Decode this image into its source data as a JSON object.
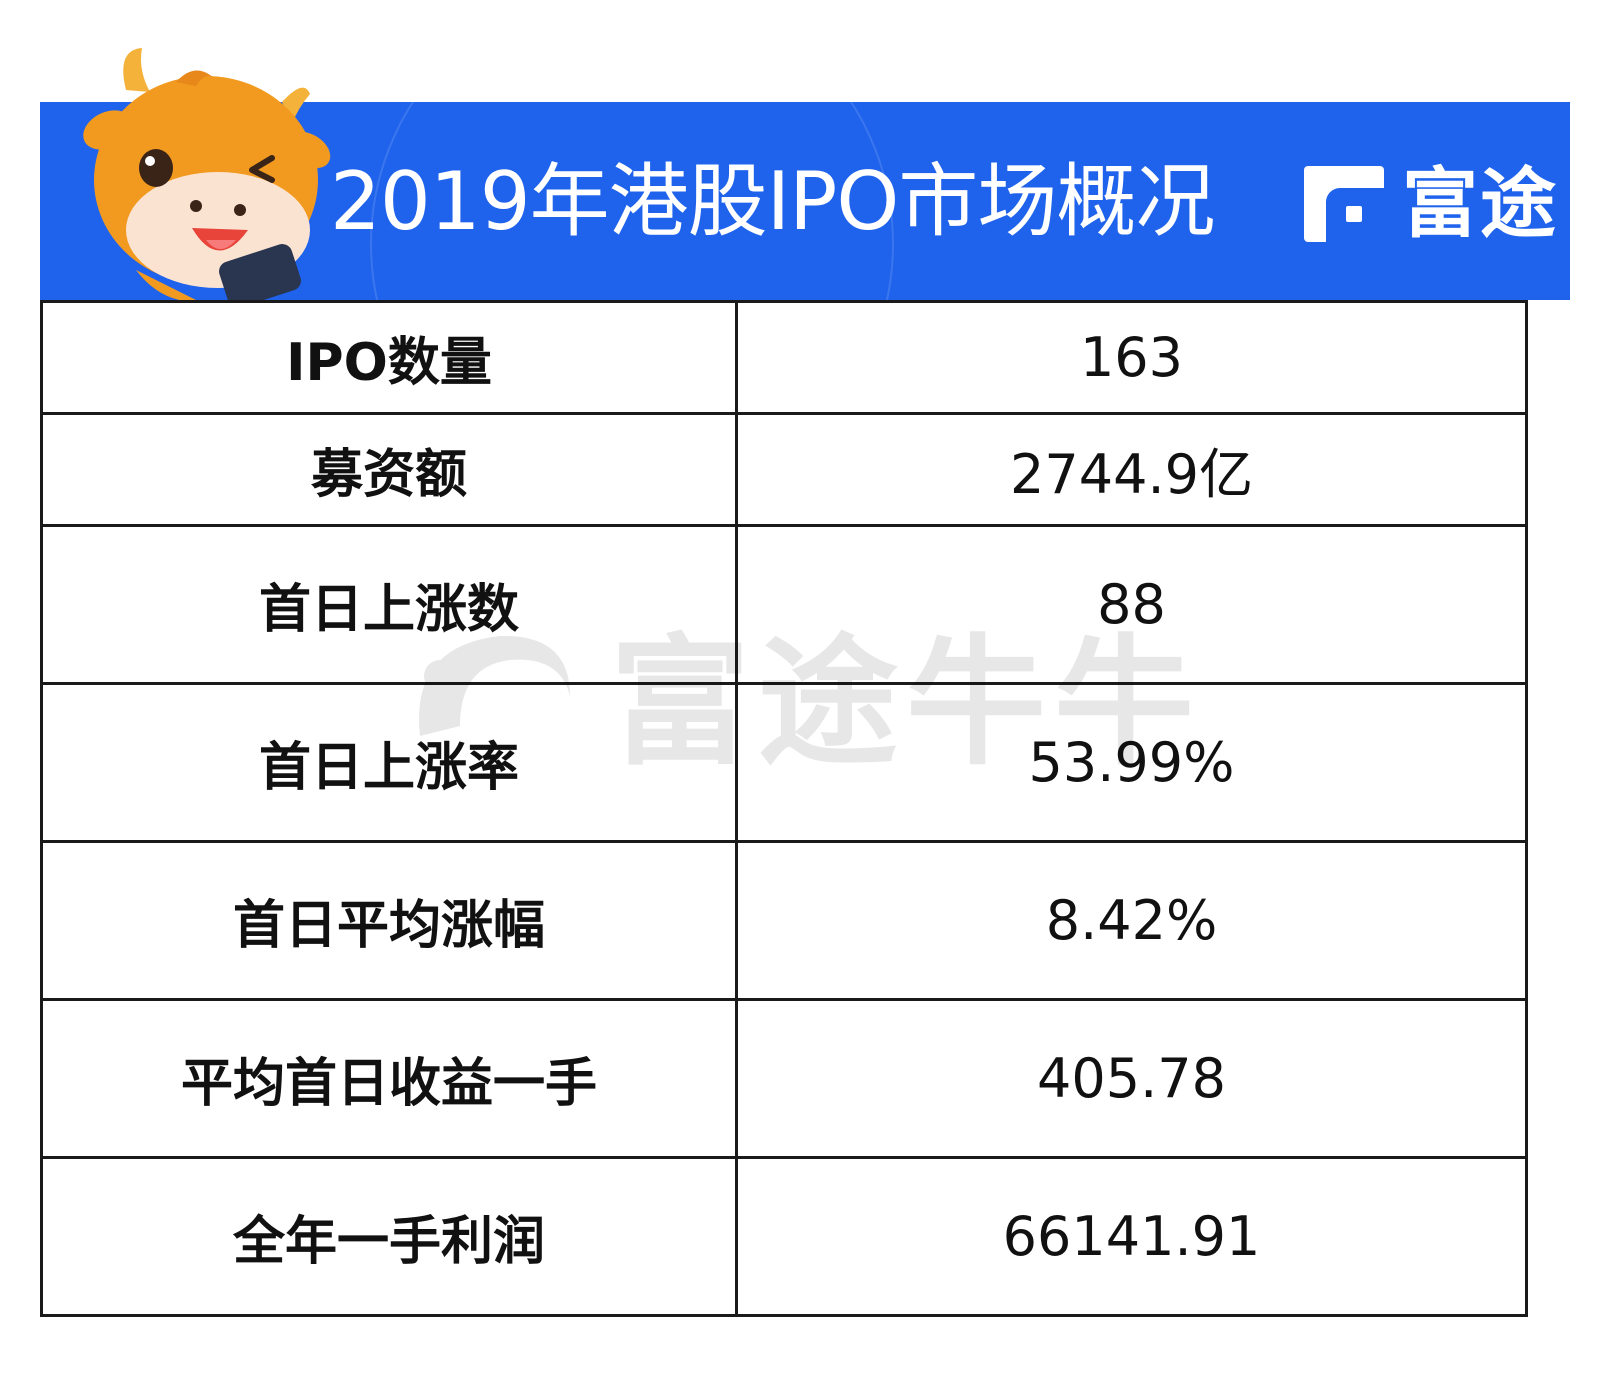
{
  "header": {
    "title": "2019年港股IPO市场概况",
    "logo_text": "富途"
  },
  "watermark": {
    "text": "富途牛牛"
  },
  "table": {
    "rows": [
      {
        "label": "IPO数量",
        "value": "163"
      },
      {
        "label": "募资额",
        "value": "2744.9亿"
      },
      {
        "label": "首日上涨数",
        "value": "88"
      },
      {
        "label": "首日上涨率",
        "value": "53.99%"
      },
      {
        "label": "首日平均涨幅",
        "value": "8.42%"
      },
      {
        "label": "平均首日收益一手",
        "value": "405.78"
      },
      {
        "label": "全年一手利润",
        "value": "66141.91"
      }
    ]
  },
  "colors": {
    "banner": "#1f63ec",
    "mascot_body": "#f29a1f",
    "text": "#111111"
  }
}
